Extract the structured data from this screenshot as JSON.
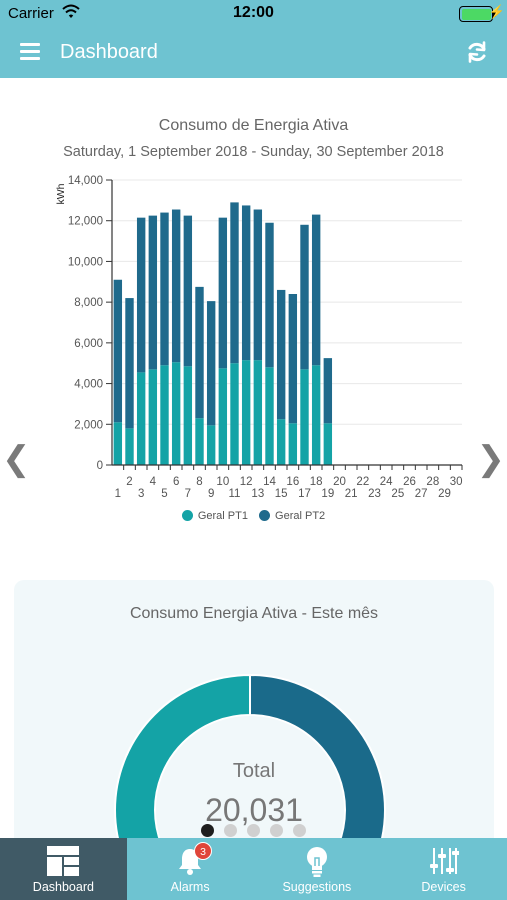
{
  "status_bar": {
    "carrier": "Carrier",
    "time": "12:00",
    "battery_percent": 100
  },
  "navbar": {
    "title": "Dashboard"
  },
  "chart": {
    "title": "Consumo de Energia Ativa",
    "subtitle": "Saturday, 1 September 2018 - Sunday, 30 September 2018"
  },
  "chart_data": {
    "type": "bar",
    "stacked": true,
    "title": "Consumo de Energia Ativa",
    "subtitle": "Saturday, 1 September 2018 - Sunday, 30 September 2018",
    "ylabel": "kWh",
    "xlabel": "",
    "ylim": [
      0,
      14000
    ],
    "yticks": [
      0,
      2000,
      4000,
      6000,
      8000,
      10000,
      12000,
      14000
    ],
    "ytick_labels": [
      "0",
      "2,000",
      "4,000",
      "6,000",
      "8,000",
      "10,000",
      "12,000",
      "14,000"
    ],
    "categories": [
      "1",
      "2",
      "3",
      "4",
      "5",
      "6",
      "7",
      "8",
      "9",
      "10",
      "11",
      "12",
      "13",
      "14",
      "15",
      "16",
      "17",
      "18",
      "19",
      "20",
      "21",
      "22",
      "23",
      "24",
      "25",
      "26",
      "27",
      "28",
      "29",
      "30"
    ],
    "series": [
      {
        "name": "Geral PT1",
        "color": "#14a3a6",
        "values": [
          2100,
          1800,
          4550,
          4700,
          4900,
          5050,
          4850,
          2300,
          1950,
          4750,
          5000,
          5150,
          5150,
          4800,
          2250,
          2050,
          4700,
          4900,
          2050,
          0,
          0,
          0,
          0,
          0,
          0,
          0,
          0,
          0,
          0,
          0
        ]
      },
      {
        "name": "Geral PT2",
        "color": "#1f6a8c",
        "values": [
          7000,
          6400,
          7600,
          7550,
          7500,
          7500,
          7400,
          6450,
          6100,
          7400,
          7900,
          7600,
          7400,
          7100,
          6350,
          6350,
          7100,
          7400,
          3200,
          0,
          0,
          0,
          0,
          0,
          0,
          0,
          0,
          0,
          0,
          0
        ]
      }
    ],
    "grid": true,
    "legend_position": "bottom"
  },
  "legend": [
    {
      "label": "Geral PT1",
      "color": "#14a3a6"
    },
    {
      "label": "Geral PT2",
      "color": "#1f6a8c"
    }
  ],
  "card": {
    "title": "Consumo Energia Ativa - Este mês",
    "total_label": "Total",
    "total_value": "20,031",
    "donut": [
      {
        "name": "Geral PT1",
        "fraction": 0.5,
        "color": "#14a3a6"
      },
      {
        "name": "Geral PT2",
        "fraction": 0.5,
        "color": "#1a6a8a"
      }
    ]
  },
  "pager": {
    "count": 5,
    "active": 0
  },
  "tabbar": {
    "tabs": [
      {
        "label": "Dashboard",
        "icon": "dashboard-icon",
        "active": true
      },
      {
        "label": "Alarms",
        "icon": "bell-icon",
        "active": false
      },
      {
        "label": "Suggestions",
        "icon": "lightbulb-icon",
        "active": false
      },
      {
        "label": "Devices",
        "icon": "sliders-icon",
        "active": false
      }
    ],
    "alarms_badge": "3"
  }
}
